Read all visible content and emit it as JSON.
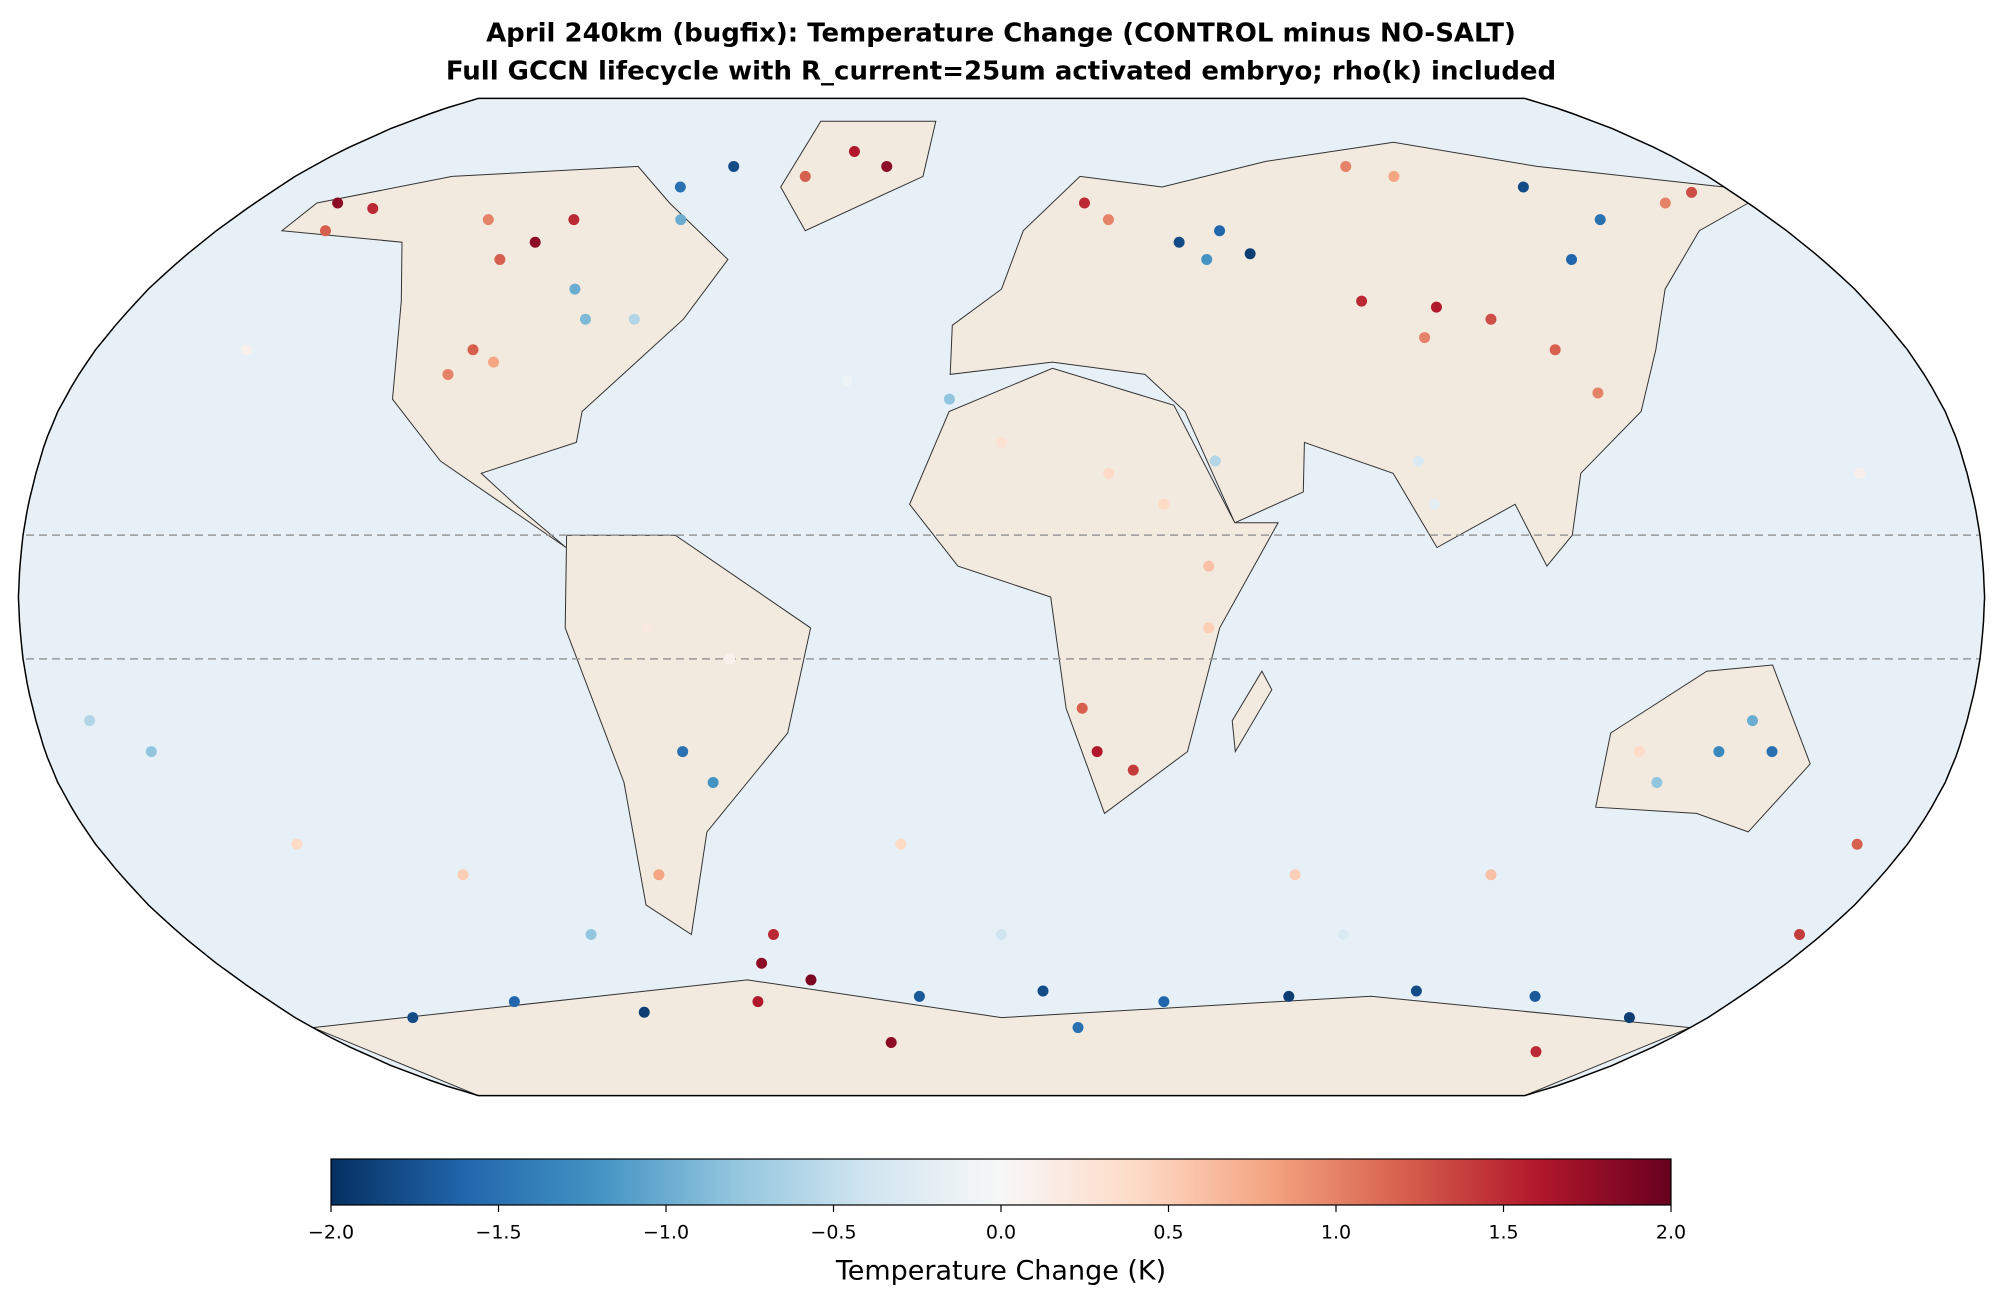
{
  "chart_data": {
    "type": "map",
    "title": "April 240km (bugfix): Temperature Change (CONTROL minus NO-SALT)",
    "subtitle": "Full GCCN lifecycle with R_current=25um activated embryo; rho(k) included",
    "projection": "robinson",
    "colormap": "RdBu_r",
    "colorbar_label": "Temperature Change (K)",
    "clim": [
      -2,
      2
    ],
    "cticks": [
      {
        "value": -2,
        "label": "−2.0"
      },
      {
        "value": -1.5,
        "label": "−1.5"
      },
      {
        "value": -1,
        "label": "−1.0"
      },
      {
        "value": -0.5,
        "label": "−0.5"
      },
      {
        "value": 0,
        "label": "0.0"
      },
      {
        "value": 0.5,
        "label": "0.5"
      },
      {
        "value": 1,
        "label": "1.0"
      },
      {
        "value": 1.5,
        "label": "1.5"
      },
      {
        "value": 2,
        "label": "2.0"
      }
    ],
    "dashed_lats": [
      10,
      -10
    ],
    "points": [
      {
        "lon": -160,
        "lat": 65,
        "value": 1.8
      },
      {
        "lon": -150,
        "lat": 64,
        "value": 1.5
      },
      {
        "lon": -155,
        "lat": 60,
        "value": 1.2
      },
      {
        "lon": -120,
        "lat": 62,
        "value": 1.0
      },
      {
        "lon": -105,
        "lat": 58,
        "value": 1.8
      },
      {
        "lon": -100,
        "lat": 62,
        "value": 1.5
      },
      {
        "lon": -110,
        "lat": 55,
        "value": 1.2
      },
      {
        "lon": -80,
        "lat": 68,
        "value": -1.5
      },
      {
        "lon": -70,
        "lat": 72,
        "value": -1.8
      },
      {
        "lon": -75,
        "lat": 62,
        "value": -1.0
      },
      {
        "lon": -105,
        "lat": 40,
        "value": 1.2
      },
      {
        "lon": -108,
        "lat": 36,
        "value": 1.0
      },
      {
        "lon": -100,
        "lat": 38,
        "value": 0.8
      },
      {
        "lon": -85,
        "lat": 45,
        "value": -0.9
      },
      {
        "lon": -90,
        "lat": 50,
        "value": -1.0
      },
      {
        "lon": -75,
        "lat": 45,
        "value": -0.6
      },
      {
        "lon": -40,
        "lat": 75,
        "value": 1.6
      },
      {
        "lon": -30,
        "lat": 72,
        "value": 1.8
      },
      {
        "lon": -50,
        "lat": 70,
        "value": 1.2
      },
      {
        "lon": 20,
        "lat": 65,
        "value": 1.5
      },
      {
        "lon": 25,
        "lat": 62,
        "value": 1.0
      },
      {
        "lon": 40,
        "lat": 58,
        "value": -1.8
      },
      {
        "lon": 50,
        "lat": 60,
        "value": -1.6
      },
      {
        "lon": 45,
        "lat": 55,
        "value": -1.2
      },
      {
        "lon": 55,
        "lat": 56,
        "value": -1.9
      },
      {
        "lon": 90,
        "lat": 72,
        "value": 1.0
      },
      {
        "lon": 100,
        "lat": 70,
        "value": 0.8
      },
      {
        "lon": 130,
        "lat": 68,
        "value": -1.8
      },
      {
        "lon": 140,
        "lat": 62,
        "value": -1.5
      },
      {
        "lon": 125,
        "lat": 55,
        "value": -1.6
      },
      {
        "lon": 75,
        "lat": 48,
        "value": 1.5
      },
      {
        "lon": 90,
        "lat": 47,
        "value": 1.6
      },
      {
        "lon": 100,
        "lat": 45,
        "value": 1.3
      },
      {
        "lon": 85,
        "lat": 42,
        "value": 1.0
      },
      {
        "lon": 110,
        "lat": 40,
        "value": 1.2
      },
      {
        "lon": 115,
        "lat": 33,
        "value": 1.0
      },
      {
        "lon": 160,
        "lat": 65,
        "value": 1.0
      },
      {
        "lon": 170,
        "lat": 67,
        "value": 1.3
      },
      {
        "lon": 0,
        "lat": 25,
        "value": 0.3
      },
      {
        "lon": 20,
        "lat": 20,
        "value": 0.4
      },
      {
        "lon": -10,
        "lat": 32,
        "value": -0.8
      },
      {
        "lon": 40,
        "lat": 22,
        "value": -0.6
      },
      {
        "lon": 30,
        "lat": 15,
        "value": 0.4
      },
      {
        "lon": 78,
        "lat": 22,
        "value": -0.3
      },
      {
        "lon": 80,
        "lat": 15,
        "value": -0.2
      },
      {
        "lon": 38,
        "lat": 5,
        "value": 0.6
      },
      {
        "lon": 38,
        "lat": -5,
        "value": 0.5
      },
      {
        "lon": 18,
        "lat": -25,
        "value": 1.6
      },
      {
        "lon": 25,
        "lat": -28,
        "value": 1.4
      },
      {
        "lon": 15,
        "lat": -18,
        "value": 1.2
      },
      {
        "lon": 135,
        "lat": -25,
        "value": -1.3
      },
      {
        "lon": 145,
        "lat": -25,
        "value": -1.5
      },
      {
        "lon": 125,
        "lat": -30,
        "value": -0.8
      },
      {
        "lon": 140,
        "lat": -20,
        "value": -1.0
      },
      {
        "lon": 120,
        "lat": -25,
        "value": 0.4
      },
      {
        "lon": -60,
        "lat": -25,
        "value": -1.5
      },
      {
        "lon": -55,
        "lat": -30,
        "value": -1.2
      },
      {
        "lon": -65,
        "lat": -5,
        "value": 0.2
      },
      {
        "lon": -50,
        "lat": -10,
        "value": 0.1
      },
      {
        "lon": -70,
        "lat": -45,
        "value": 0.8
      },
      {
        "lon": -55,
        "lat": -60,
        "value": 1.8
      },
      {
        "lon": -45,
        "lat": -63,
        "value": 1.9
      },
      {
        "lon": -50,
        "lat": -55,
        "value": 1.5
      },
      {
        "lon": -60,
        "lat": -67,
        "value": 1.6
      },
      {
        "lon": -150,
        "lat": -70,
        "value": -1.8
      },
      {
        "lon": -120,
        "lat": -67,
        "value": -1.6
      },
      {
        "lon": -90,
        "lat": -69,
        "value": -1.9
      },
      {
        "lon": -20,
        "lat": -66,
        "value": -1.7
      },
      {
        "lon": 10,
        "lat": -65,
        "value": -1.8
      },
      {
        "lon": 40,
        "lat": -67,
        "value": -1.6
      },
      {
        "lon": 70,
        "lat": -66,
        "value": -1.9
      },
      {
        "lon": 100,
        "lat": -65,
        "value": -1.8
      },
      {
        "lon": 130,
        "lat": -66,
        "value": -1.7
      },
      {
        "lon": 160,
        "lat": -70,
        "value": -1.9
      },
      {
        "lon": 20,
        "lat": -72,
        "value": -1.5
      },
      {
        "lon": 150,
        "lat": -77,
        "value": 1.5
      },
      {
        "lon": -30,
        "lat": -75,
        "value": 1.8
      },
      {
        "lon": -170,
        "lat": -20,
        "value": -0.6
      },
      {
        "lon": -160,
        "lat": -25,
        "value": -0.8
      },
      {
        "lon": -140,
        "lat": -40,
        "value": 0.4
      },
      {
        "lon": -110,
        "lat": -45,
        "value": 0.5
      },
      {
        "lon": -20,
        "lat": -40,
        "value": 0.4
      },
      {
        "lon": 60,
        "lat": -45,
        "value": 0.5
      },
      {
        "lon": 100,
        "lat": -45,
        "value": 0.6
      },
      {
        "lon": 170,
        "lat": -40,
        "value": 1.2
      },
      {
        "lon": 175,
        "lat": -55,
        "value": 1.4
      },
      {
        "lon": -150,
        "lat": 40,
        "value": 0.1
      },
      {
        "lon": -30,
        "lat": 35,
        "value": -0.1
      },
      {
        "lon": 160,
        "lat": 20,
        "value": 0.1
      },
      {
        "lon": -90,
        "lat": -55,
        "value": -0.8
      },
      {
        "lon": 0,
        "lat": -55,
        "value": -0.4
      },
      {
        "lon": 75,
        "lat": -55,
        "value": -0.3
      }
    ]
  }
}
